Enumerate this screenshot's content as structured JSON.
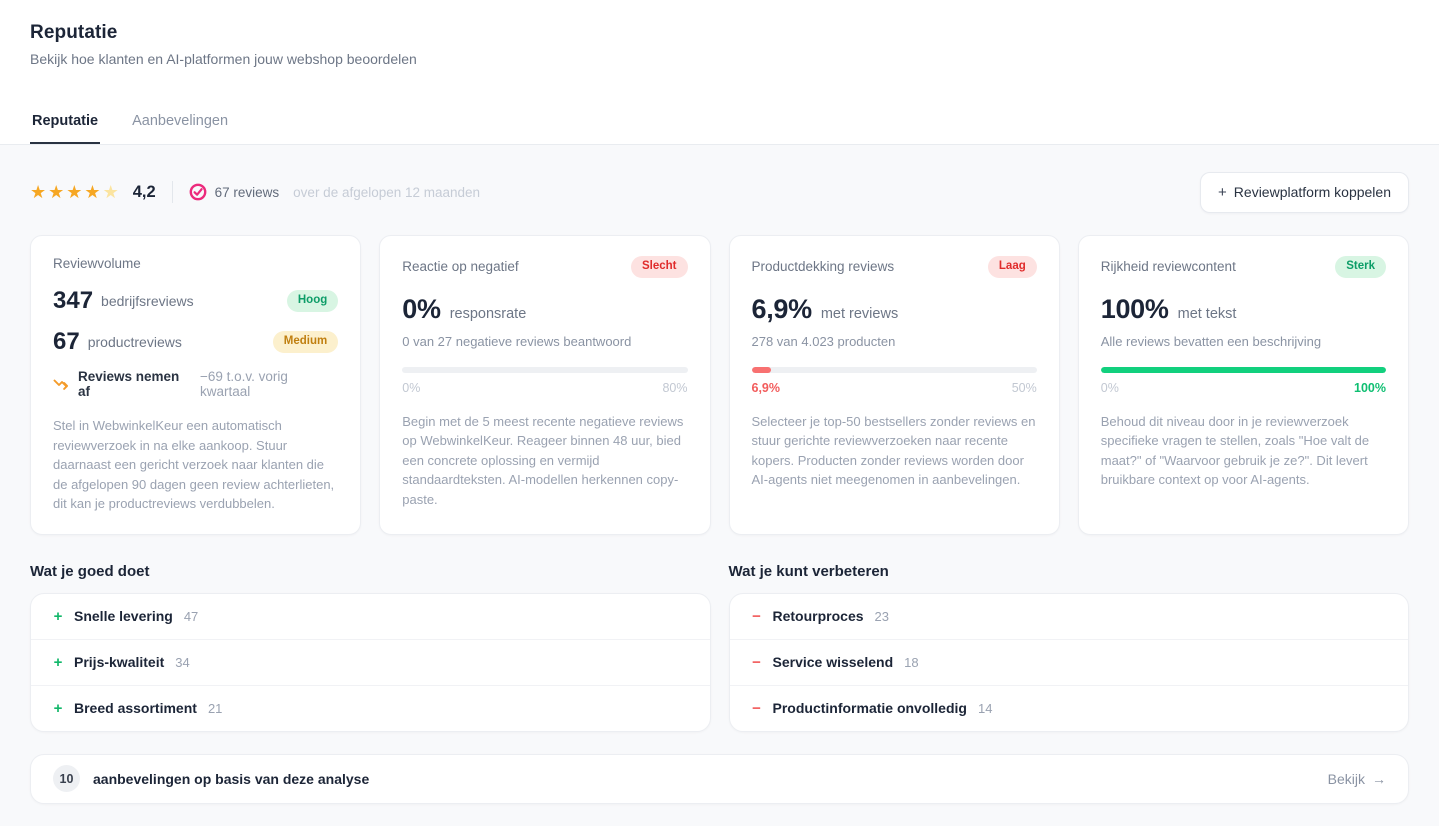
{
  "header": {
    "title": "Reputatie",
    "subtitle": "Bekijk hoe klanten en AI-platformen jouw webshop beoordelen"
  },
  "tabs": {
    "reputatie": "Reputatie",
    "aanbevelingen": "Aanbevelingen"
  },
  "summary": {
    "rating": "4,2",
    "stars_filled": 4,
    "stars_total": 5,
    "star_color": "#f6a723",
    "star_empty_color": "#fbe4a0",
    "platform_icon": "webwinkelkeur-check-icon",
    "platform_icon_color": "#ec2a7c",
    "reviews_count_label": "67 reviews",
    "period_label": "over de afgelopen 12 maanden",
    "connect_button_plus": "+",
    "connect_button_label": "Reviewplatform koppelen"
  },
  "cards": {
    "review_volume": {
      "title": "Reviewvolume",
      "rows": [
        {
          "value": "347",
          "label": "bedrijfsreviews",
          "badge": "Hoog",
          "badge_style": "green"
        },
        {
          "value": "67",
          "label": "productreviews",
          "badge": "Medium",
          "badge_style": "amber"
        }
      ],
      "trend_icon": "trending-down-icon",
      "trend_icon_color": "#f49b2a",
      "trend_label": "Reviews nemen af",
      "trend_detail": "−69 t.o.v. vorig kwartaal",
      "description": "Stel in WebwinkelKeur een automatisch reviewverzoek in na elke aankoop. Stuur daarnaast een gericht verzoek naar klanten die de afgelopen 90 dagen geen review achterlieten, dit kan je productreviews verdubbelen."
    },
    "negative_response": {
      "title": "Reactie op negatief",
      "badge": "Slecht",
      "badge_style": "red",
      "value": "0%",
      "value_suffix": "responsrate",
      "subtext": "0 van 27 negatieve reviews beantwoord",
      "progress_percent": 0,
      "progress_style": "gray",
      "scale_left": "0%",
      "scale_right": "80%",
      "description": "Begin met de 5 meest recente negatieve reviews op WebwinkelKeur. Reageer binnen 48 uur, bied een concrete oplossing en vermijd standaardteksten. AI-modellen herkennen copy-paste."
    },
    "product_coverage": {
      "title": "Productdekking reviews",
      "badge": "Laag",
      "badge_style": "red",
      "value": "6,9%",
      "value_suffix": "met reviews",
      "subtext": "278 van 4.023 producten",
      "progress_percent": 6.9,
      "progress_style": "red",
      "scale_left": "6,9%",
      "scale_left_style": "red",
      "scale_right": "50%",
      "description": "Selecteer je top-50 bestsellers zonder reviews en stuur gerichte reviewverzoeken naar recente kopers. Producten zonder reviews worden door AI-agents niet meegenomen in aanbevelingen."
    },
    "review_richness": {
      "title": "Rijkheid reviewcontent",
      "badge": "Sterk",
      "badge_style": "green",
      "value": "100%",
      "value_suffix": "met tekst",
      "subtext": "Alle reviews bevatten een beschrijving",
      "progress_percent": 100,
      "progress_style": "green",
      "scale_left": "0%",
      "scale_right": "100%",
      "scale_right_style": "green",
      "description": "Behoud dit niveau door in je reviewverzoek specifieke vragen te stellen, zoals \"Hoe valt de maat?\" of \"Waarvoor gebruik je ze?\". Dit levert bruikbare context op voor AI-agents."
    }
  },
  "strengths": {
    "heading": "Wat je goed doet",
    "sign": "+",
    "sign_style": "plus",
    "items": [
      {
        "label": "Snelle levering",
        "count": "47"
      },
      {
        "label": "Prijs-kwaliteit",
        "count": "34"
      },
      {
        "label": "Breed assortiment",
        "count": "21"
      }
    ]
  },
  "improvements": {
    "heading": "Wat je kunt verbeteren",
    "sign": "−",
    "sign_style": "minus",
    "items": [
      {
        "label": "Retourproces",
        "count": "23"
      },
      {
        "label": "Service wisselend",
        "count": "18"
      },
      {
        "label": "Productinformatie onvolledig",
        "count": "14"
      }
    ]
  },
  "recommendations_bar": {
    "count": "10",
    "label": "aanbevelingen op basis van deze analyse",
    "action_label": "Bekijk",
    "action_icon": "arrow-right-icon",
    "action_arrow": "→"
  }
}
